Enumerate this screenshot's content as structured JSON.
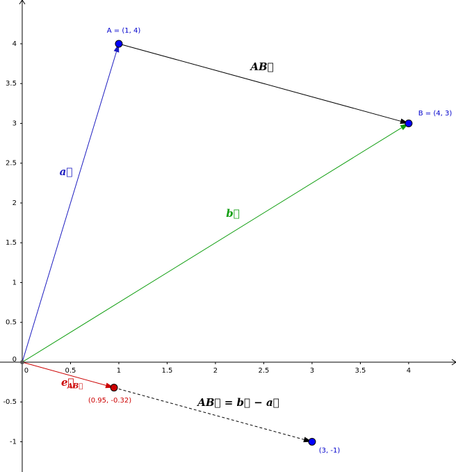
{
  "chart_data": {
    "type": "vector",
    "xlim": [
      -0.23,
      4.49
    ],
    "ylim": [
      -1.38,
      4.55
    ],
    "xticks": [
      0,
      0.5,
      1,
      1.5,
      2,
      2.5,
      3,
      3.5,
      4
    ],
    "yticks": [
      -1,
      -0.5,
      0,
      0.5,
      1,
      1.5,
      2,
      2.5,
      3,
      3.5,
      4
    ],
    "grid": false,
    "points": [
      {
        "label": "A = (1, 4)",
        "x": 1,
        "y": 4,
        "color": "#0000ff",
        "label_color": "#0000cc"
      },
      {
        "label": "B = (4, 3)",
        "x": 4,
        "y": 3,
        "color": "#0000ff",
        "label_color": "#0000cc"
      },
      {
        "label": "(0.95, -0.32)",
        "x": 0.95,
        "y": -0.32,
        "color": "#cc0000",
        "label_color": "#cc0000"
      },
      {
        "label": "(3, -1)",
        "x": 3,
        "y": -1,
        "color": "#0000ff",
        "label_color": "#0000cc"
      }
    ],
    "vectors": [
      {
        "label": "a⃗",
        "color": "#1c1cc0",
        "from": [
          0,
          0
        ],
        "to": [
          1,
          4
        ],
        "dashed": false
      },
      {
        "label": "b⃗",
        "color": "#109e10",
        "from": [
          0,
          0
        ],
        "to": [
          4,
          3
        ],
        "dashed": false
      },
      {
        "label": "AB⃗",
        "color": "#000000",
        "from": [
          1,
          4
        ],
        "to": [
          4,
          3
        ],
        "dashed": false
      },
      {
        "label": "e⃗",
        "subscript": "AB⃗",
        "color": "#cc0000",
        "from": [
          0,
          0
        ],
        "to": [
          0.95,
          -0.32
        ],
        "dashed": false
      },
      {
        "label": "AB⃗ = b⃗ − a⃗",
        "color": "#000000",
        "from": [
          0.95,
          -0.32
        ],
        "to": [
          3,
          -1
        ],
        "dashed": true
      }
    ]
  }
}
